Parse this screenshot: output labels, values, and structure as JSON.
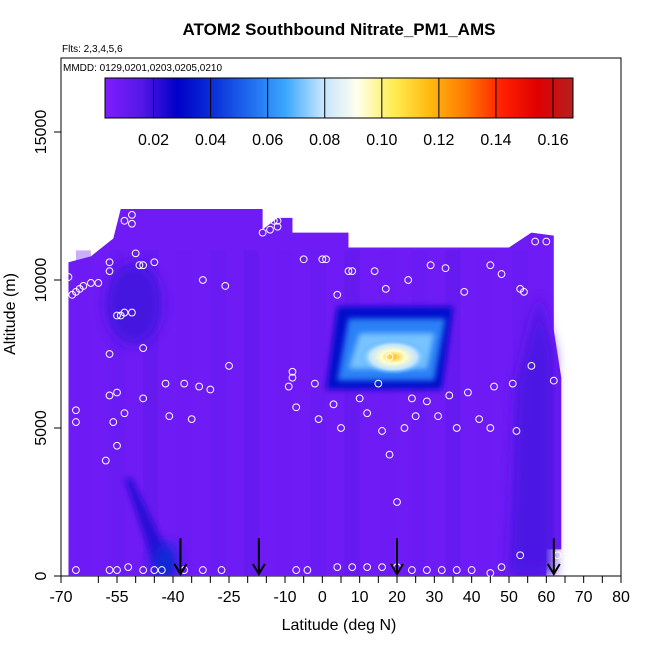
{
  "chart_data": {
    "type": "heatmap",
    "title": "ATOM2 Southbound Nitrate_PM1_AMS",
    "flights_label": "Flts: 2,3,4,5,6",
    "dates_label": "MMDD: 0129,0201,0203,0205,0210",
    "xlabel": "Latitude (deg N)",
    "ylabel": "Altitude (m)",
    "xlim": [
      -70,
      80
    ],
    "ylim": [
      0,
      17500
    ],
    "x_ticks": [
      -70,
      -55,
      -40,
      -25,
      -10,
      0,
      10,
      20,
      30,
      40,
      50,
      60,
      70,
      80
    ],
    "x_tick_labels": [
      "-70",
      "-55",
      "-40",
      "-25",
      "-10",
      "0",
      "10",
      "20",
      "30",
      "40",
      "50",
      "60",
      "70",
      "80"
    ],
    "x_minor_ticks": [
      -60,
      -50,
      -45,
      -35,
      -30,
      -20,
      -15,
      -5,
      5,
      15,
      25,
      35,
      45,
      55,
      65,
      75
    ],
    "y_ticks": [
      0,
      5000,
      10000,
      15000
    ],
    "y_tick_labels": [
      "0",
      "5000",
      "10000",
      "15000"
    ],
    "colorbar": {
      "range": [
        0.003,
        0.167
      ],
      "tick_values": [
        0.02,
        0.04,
        0.06,
        0.08,
        0.1,
        0.12,
        0.14,
        0.16
      ],
      "tick_labels": [
        "0.02",
        "0.04",
        "0.06",
        "0.08",
        "0.10",
        "0.12",
        "0.14",
        "0.16"
      ],
      "colors": [
        "#7f1dff",
        "#5518e6",
        "#0000c8",
        "#0b2fd9",
        "#1f6aef",
        "#3aa6ff",
        "#bfe3ff",
        "#ffffee",
        "#ffee55",
        "#ffbb10",
        "#ff7a00",
        "#ff2200",
        "#e00000",
        "#b52020"
      ]
    },
    "background_value": 0.008,
    "regions": [
      {
        "name": "mid-altitude plume",
        "x": [
          1,
          35
        ],
        "y": [
          6300,
          9100
        ],
        "peak_value": 0.11,
        "peak_at": [
          19,
          7400
        ]
      },
      {
        "name": "southern boundary-layer streak",
        "x": [
          -53,
          -40
        ],
        "y": [
          0,
          3300
        ],
        "peak_value": 0.04
      },
      {
        "name": "southern upper-troposphere enhancement",
        "x": [
          -58,
          -43
        ],
        "y": [
          7800,
          10600
        ],
        "peak_value": 0.02
      },
      {
        "name": "northern low-level column",
        "x": [
          50,
          62
        ],
        "y": [
          0,
          9500
        ],
        "peak_value": 0.02
      }
    ],
    "flight_track": [
      [
        -68,
        10100
      ],
      [
        -67,
        9500
      ],
      [
        -66,
        9600
      ],
      [
        -65,
        9700
      ],
      [
        -64,
        9800
      ],
      [
        -62,
        9900
      ],
      [
        -60,
        9900
      ],
      [
        -57,
        10600
      ],
      [
        -57,
        10300
      ],
      [
        -55,
        8800
      ],
      [
        -54,
        8800
      ],
      [
        -53,
        8900
      ],
      [
        -51,
        8900
      ],
      [
        -49,
        10500
      ],
      [
        -48,
        10500
      ],
      [
        -45,
        10600
      ],
      [
        -32,
        10000
      ],
      [
        -26,
        9800
      ],
      [
        -53,
        12000
      ],
      [
        -51,
        12200
      ],
      [
        -50,
        10900
      ],
      [
        -51,
        11900
      ],
      [
        -16,
        11600
      ],
      [
        -14,
        11700
      ],
      [
        -13,
        12000
      ],
      [
        -12,
        12000
      ],
      [
        -12,
        11800
      ],
      [
        -66,
        5600
      ],
      [
        -66,
        5200
      ],
      [
        -57,
        7500
      ],
      [
        -57,
        6100
      ],
      [
        -55,
        6200
      ],
      [
        -56,
        5200
      ],
      [
        -55,
        4400
      ],
      [
        -58,
        3900
      ],
      [
        -53,
        5500
      ],
      [
        -48,
        7700
      ],
      [
        -48,
        6000
      ],
      [
        -42,
        6500
      ],
      [
        -41,
        5400
      ],
      [
        -37,
        6500
      ],
      [
        -35,
        5300
      ],
      [
        -33,
        6400
      ],
      [
        -30,
        6300
      ],
      [
        -25,
        7100
      ],
      [
        -8,
        6900
      ],
      [
        -8,
        6700
      ],
      [
        -9,
        6400
      ],
      [
        -7,
        5700
      ],
      [
        -5,
        10700
      ],
      [
        -2,
        6500
      ],
      [
        -1,
        5300
      ],
      [
        0,
        10700
      ],
      [
        1,
        10700
      ],
      [
        3,
        5800
      ],
      [
        4,
        9500
      ],
      [
        5,
        5000
      ],
      [
        7,
        10300
      ],
      [
        8,
        10300
      ],
      [
        10,
        6000
      ],
      [
        12,
        5500
      ],
      [
        14,
        10300
      ],
      [
        15,
        6500
      ],
      [
        16,
        4900
      ],
      [
        17,
        9700
      ],
      [
        18,
        7400
      ],
      [
        22,
        5000
      ],
      [
        23,
        10000
      ],
      [
        24,
        6000
      ],
      [
        25,
        5400
      ],
      [
        28,
        5900
      ],
      [
        29,
        10500
      ],
      [
        31,
        5400
      ],
      [
        33,
        10400
      ],
      [
        34,
        6100
      ],
      [
        36,
        5000
      ],
      [
        38,
        9600
      ],
      [
        39,
        6200
      ],
      [
        42,
        5300
      ],
      [
        45,
        10500
      ],
      [
        45,
        5000
      ],
      [
        46,
        6400
      ],
      [
        48,
        10200
      ],
      [
        51,
        6500
      ],
      [
        52,
        4900
      ],
      [
        53,
        9700
      ],
      [
        54,
        9600
      ],
      [
        56,
        7100
      ],
      [
        57,
        11300
      ],
      [
        60,
        11300
      ],
      [
        62,
        6600
      ],
      [
        18,
        4100
      ],
      [
        20,
        2500
      ],
      [
        -66,
        200
      ],
      [
        -57,
        200
      ],
      [
        -55,
        200
      ],
      [
        -52,
        300
      ],
      [
        -48,
        200
      ],
      [
        -45,
        200
      ],
      [
        -43,
        200
      ],
      [
        -37,
        200
      ],
      [
        -32,
        200
      ],
      [
        -27,
        200
      ],
      [
        -7,
        200
      ],
      [
        -4,
        200
      ],
      [
        4,
        300
      ],
      [
        8,
        300
      ],
      [
        12,
        300
      ],
      [
        16,
        300
      ],
      [
        20,
        300
      ],
      [
        24,
        200
      ],
      [
        28,
        200
      ],
      [
        32,
        200
      ],
      [
        36,
        200
      ],
      [
        40,
        200
      ],
      [
        45,
        100
      ],
      [
        48,
        300
      ],
      [
        53,
        700
      ],
      [
        63,
        700
      ]
    ],
    "arrow_latitudes": [
      -38,
      -17,
      20,
      62
    ]
  }
}
